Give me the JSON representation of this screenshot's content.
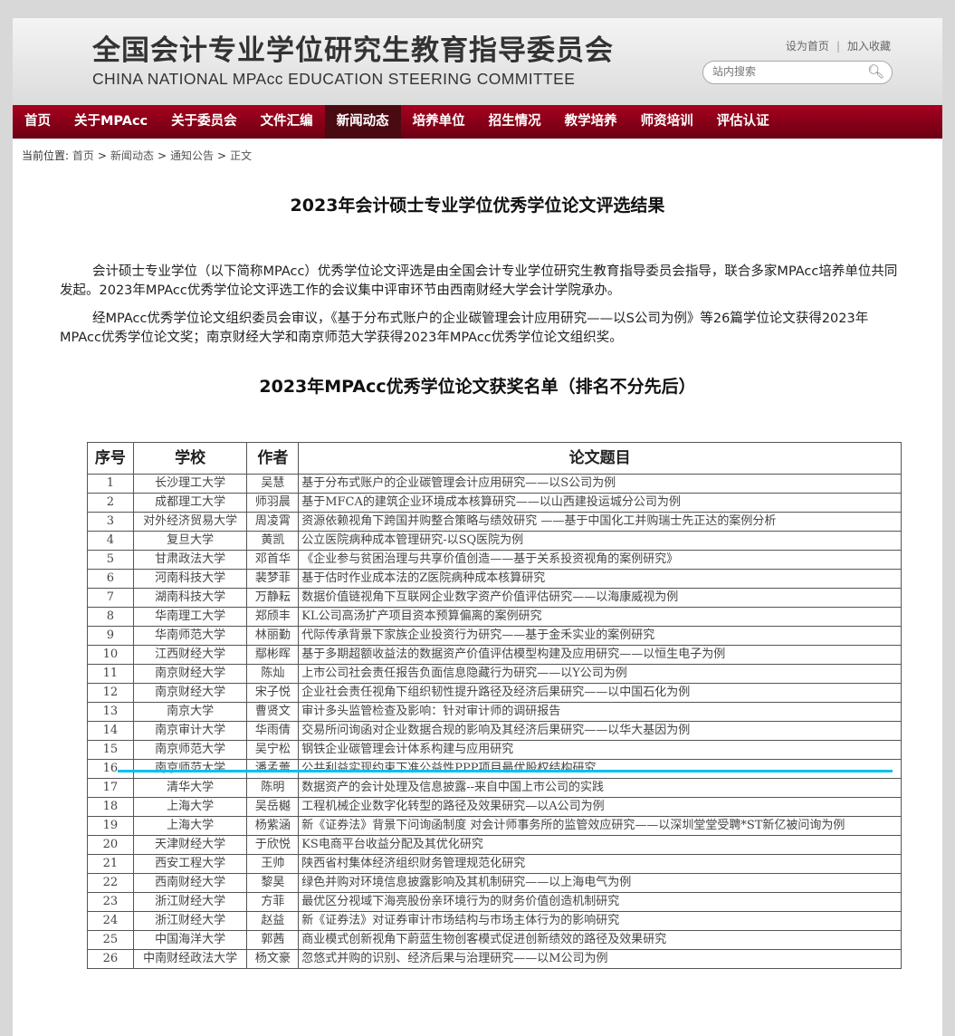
{
  "header": {
    "logo_cn": "全国会计专业学位研究生教育指导委员会",
    "logo_en": "CHINA NATIONAL MPAcc EDUCATION STEERING COMMITTEE",
    "set_home": "设为首页",
    "separator": "|",
    "favorite": "加入收藏",
    "search_placeholder": "站内搜索",
    "search_icon": "magnifier-icon"
  },
  "nav": [
    "首页",
    "关于MPAcc",
    "关于委员会",
    "文件汇编",
    "新闻动态",
    "培养单位",
    "招生情况",
    "教学培养",
    "师资培训",
    "评估认证"
  ],
  "nav_active": "新闻动态",
  "breadcrumb": {
    "label": "当前位置:",
    "items": [
      "首页",
      "新闻动态",
      "通知公告",
      "正文"
    ],
    "sep": ">"
  },
  "article": {
    "title": "2023年会计硕士专业学位优秀学位论文评选结果",
    "p1": "会计硕士专业学位（以下简称MPAcc）优秀学位论文评选是由全国会计专业学位研究生教育指导委员会指导，联合多家MPAcc培养单位共同发起。2023年MPAcc优秀学位论文评选工作的会议集中评审环节由西南财经大学会计学院承办。",
    "p2": "经MPAcc优秀学位论文组织委员会审议，《基于分布式账户的企业碳管理会计应用研究——以S公司为例》等26篇学位论文获得2023年MPAcc优秀学位论文奖；南京财经大学和南京师范大学获得2023年MPAcc优秀学位论文组织奖。",
    "list_title": "2023年MPAcc优秀学位论文获奖名单（排名不分先后）"
  },
  "table": {
    "headers": [
      "序号",
      "学校",
      "作者",
      "论文题目"
    ],
    "rows": [
      [
        "1",
        "长沙理工大学",
        "吴慧",
        "基于分布式账户的企业碳管理会计应用研究——以S公司为例"
      ],
      [
        "2",
        "成都理工大学",
        "师羽晨",
        "基于MFCA的建筑企业环境成本核算研究——以山西建投运城分公司为例"
      ],
      [
        "3",
        "对外经济贸易大学",
        "周凌霄",
        "资源依赖视角下跨国并购整合策略与绩效研究 ——基于中国化工并购瑞士先正达的案例分析"
      ],
      [
        "4",
        "复旦大学",
        "黄凯",
        "公立医院病种成本管理研究-以SQ医院为例"
      ],
      [
        "5",
        "甘肃政法大学",
        "邓首华",
        "《企业参与贫困治理与共享价值创造——基于关系投资视角的案例研究》"
      ],
      [
        "6",
        "河南科技大学",
        "裴梦菲",
        "基于估时作业成本法的Z医院病种成本核算研究"
      ],
      [
        "7",
        "湖南科技大学",
        "万静耘",
        "数据价值链视角下互联网企业数字资产价值评估研究——以海康威视为例"
      ],
      [
        "8",
        "华南理工大学",
        "郑颀丰",
        "KL公司高汤扩产项目资本预算偏离的案例研究"
      ],
      [
        "9",
        "华南师范大学",
        "林丽勤",
        "代际传承背景下家族企业投资行为研究——基于金禾实业的案例研究"
      ],
      [
        "10",
        "江西财经大学",
        "鄢彬晖",
        "基于多期超额收益法的数据资产价值评估模型构建及应用研究——以恒生电子为例"
      ],
      [
        "11",
        "南京财经大学",
        "陈灿",
        "上市公司社会责任报告负面信息隐藏行为研究——以Y公司为例"
      ],
      [
        "12",
        "南京财经大学",
        "宋子悦",
        "企业社会责任视角下组织韧性提升路径及经济后果研究——以中国石化为例"
      ],
      [
        "13",
        "南京大学",
        "曹贤文",
        "审计多头监管检查及影响：针对审计师的调研报告"
      ],
      [
        "14",
        "南京审计大学",
        "华雨倩",
        "交易所问询函对企业数据合规的影响及其经济后果研究——以华大基因为例"
      ],
      [
        "15",
        "南京师范大学",
        "吴宁松",
        "钢铁企业碳管理会计体系构建与应用研究"
      ],
      [
        "16",
        "南京师范大学",
        "潘孟蕾",
        "公共利益实现约束下准公益性PPP项目最优股权结构研究"
      ],
      [
        "17",
        "清华大学",
        "陈明",
        "数据资产的会计处理及信息披露--来自中国上市公司的实践"
      ],
      [
        "18",
        "上海大学",
        "吴岳樾",
        "工程机械企业数字化转型的路径及效果研究—以A公司为例"
      ],
      [
        "19",
        "上海大学",
        "杨紫涵",
        "新《证券法》背景下问询函制度 对会计师事务所的监管效应研究——以深圳堂堂受聘*ST新亿被问询为例"
      ],
      [
        "20",
        "天津财经大学",
        "于欣悦",
        "KS电商平台收益分配及其优化研究"
      ],
      [
        "21",
        "西安工程大学",
        "王帅",
        "陕西省村集体经济组织财务管理规范化研究"
      ],
      [
        "22",
        "西南财经大学",
        "黎昊",
        "绿色并购对环境信息披露影响及其机制研究——以上海电气为例"
      ],
      [
        "23",
        "浙江财经大学",
        "方菲",
        "最优区分视域下海亮股份亲环境行为的财务价值创造机制研究"
      ],
      [
        "24",
        "浙江财经大学",
        "赵益",
        "新《证券法》对证券审计市场结构与市场主体行为的影响研究"
      ],
      [
        "25",
        "中国海洋大学",
        "郭茜",
        "商业模式创新视角下蔚蓝生物创客模式促进创新绩效的路径及效果研究"
      ],
      [
        "26",
        "中南财经政法大学",
        "杨文豪",
        "忽悠式并购的识别、经济后果与治理研究——以M公司为例"
      ]
    ]
  },
  "colors": {
    "nav_red": "#a8001f",
    "nav_active": "#4a0a12",
    "highlight_line": "#00c0f0"
  }
}
